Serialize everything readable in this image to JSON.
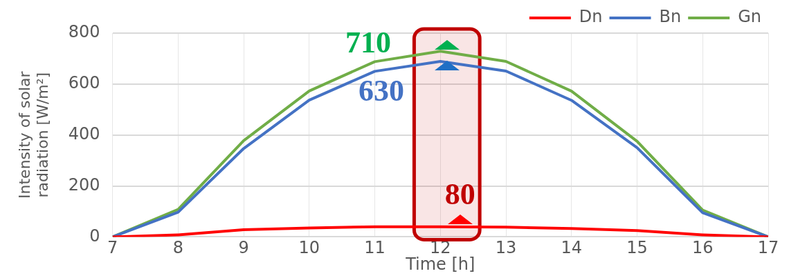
{
  "chart_data": {
    "type": "line",
    "xlabel": "Time [h]",
    "ylabel": "Intensity of solar\nradiation [W/m²]",
    "x": [
      7,
      8,
      9,
      10,
      11,
      12,
      13,
      14,
      15,
      16,
      17
    ],
    "series": [
      {
        "name": "Dn",
        "color": "#ff0000",
        "values": [
          0,
          8,
          28,
          35,
          40,
          40,
          38,
          33,
          25,
          8,
          0
        ]
      },
      {
        "name": "Bn",
        "color": "#4472c4",
        "values": [
          0,
          97,
          347,
          537,
          650,
          689,
          651,
          536,
          350,
          95,
          0
        ]
      },
      {
        "name": "Gn",
        "color": "#70ad47",
        "values": [
          0,
          108,
          378,
          573,
          688,
          729,
          689,
          572,
          375,
          105,
          0
        ]
      }
    ],
    "xlim": [
      7,
      17
    ],
    "xticks": [
      7,
      8,
      9,
      10,
      11,
      12,
      13,
      14,
      15,
      16,
      17
    ],
    "ylim": [
      0,
      800
    ],
    "yticks": [
      0,
      200,
      400,
      600,
      800
    ],
    "grid": true,
    "legend": "top right",
    "marker": "none",
    "line_style": "solid",
    "bands": [
      {
        "axis": "x",
        "from": 11.6,
        "to": 12.6,
        "color": "#c00000"
      }
    ],
    "annotations": [
      "710",
      "630",
      "80"
    ]
  }
}
